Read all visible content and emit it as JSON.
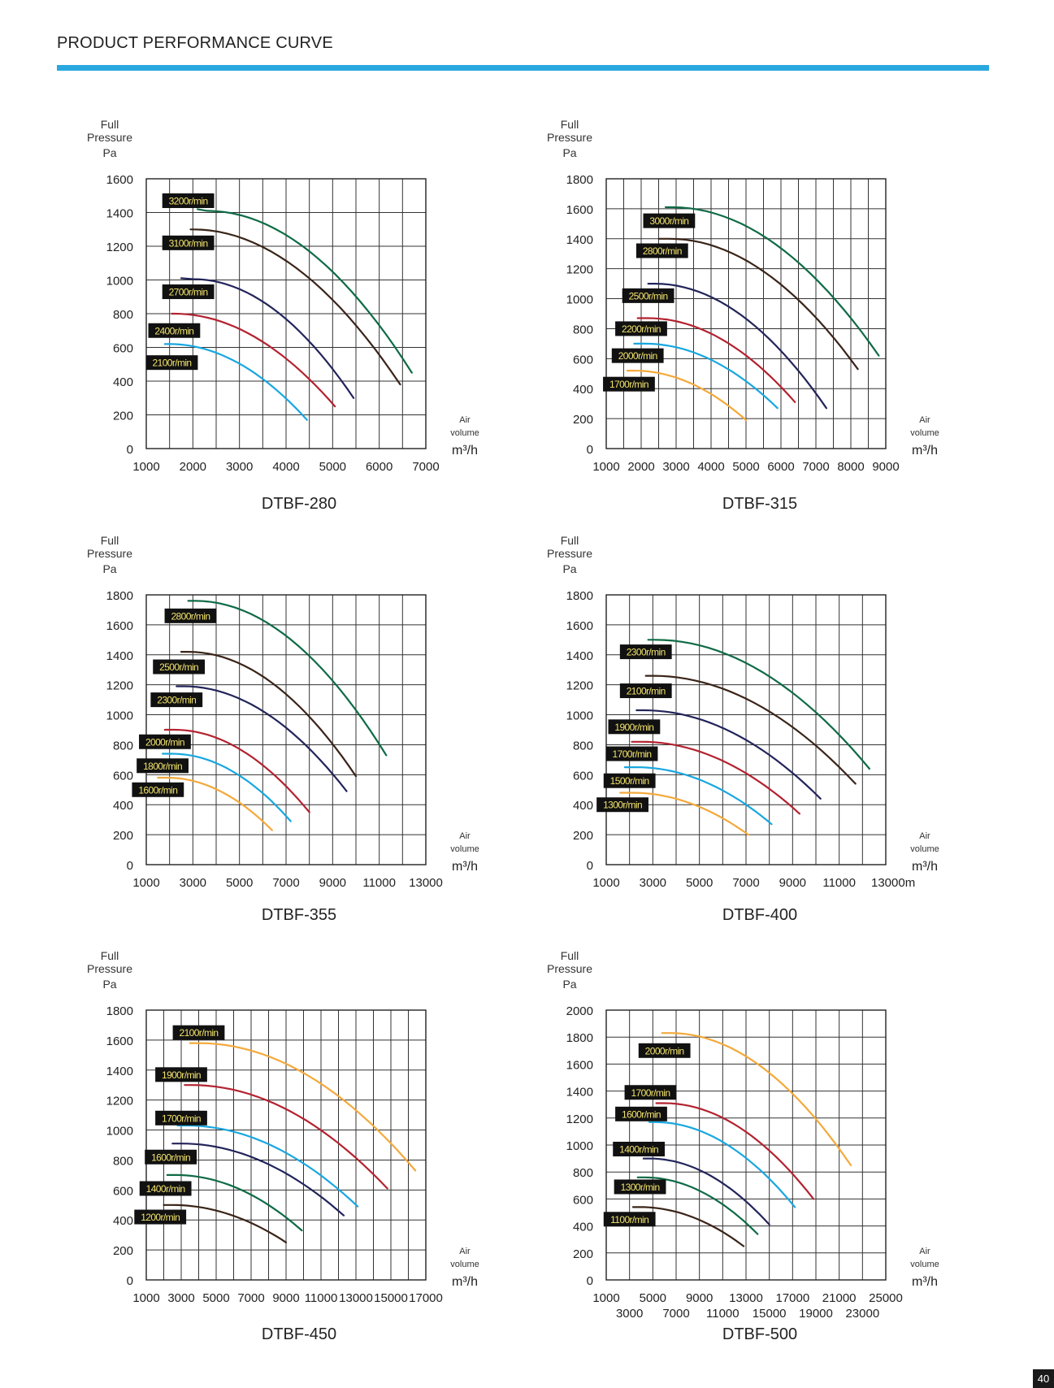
{
  "page": {
    "title": "PRODUCT PERFORMANCE CURVE",
    "page_number": "40",
    "accent_color": "#29a8e0"
  },
  "chart_data": [
    {
      "type": "line",
      "model": "DTBF-280",
      "ylabel": [
        "Full",
        "Pressure",
        "Pa"
      ],
      "xlabel": [
        "Air",
        "volume",
        "m³/h"
      ],
      "xlim": [
        1000,
        7000
      ],
      "x_ticks": [
        1000,
        2000,
        3000,
        4000,
        5000,
        6000,
        7000
      ],
      "x_tick_rows": 1,
      "x_vlines": 12,
      "ylim": [
        0,
        1600
      ],
      "y_ticks": [
        0,
        200,
        400,
        600,
        800,
        1000,
        1200,
        1400,
        1600
      ],
      "series": [
        {
          "name": "3200r/min",
          "color": "#0e6b45",
          "label_at": [
            1900,
            1470
          ],
          "start": [
            2100,
            1420
          ],
          "peak": [
            2300,
            1410
          ],
          "end": [
            6700,
            450
          ]
        },
        {
          "name": "3100r/min",
          "color": "#3a2418",
          "label_at": [
            1900,
            1220
          ],
          "start": [
            1950,
            1300
          ],
          "peak": [
            2000,
            1300
          ],
          "end": [
            6450,
            380
          ]
        },
        {
          "name": "2700r/min",
          "color": "#22245a",
          "label_at": [
            1900,
            930
          ],
          "start": [
            1750,
            1010
          ],
          "peak": [
            2000,
            1005
          ],
          "end": [
            5450,
            300
          ]
        },
        {
          "name": "2400r/min",
          "color": "#b3222f",
          "label_at": [
            1600,
            700
          ],
          "start": [
            1550,
            800
          ],
          "peak": [
            1600,
            800
          ],
          "end": [
            5050,
            250
          ]
        },
        {
          "name": "2100r/min",
          "color": "#18a7e0",
          "label_at": [
            1550,
            510
          ],
          "start": [
            1400,
            620
          ],
          "peak": [
            1500,
            620
          ],
          "end": [
            4450,
            170
          ]
        }
      ]
    },
    {
      "type": "line",
      "model": "DTBF-315",
      "ylabel": [
        "Full",
        "Pressure",
        "Pa"
      ],
      "xlabel": [
        "Air",
        "volume",
        "m³/h"
      ],
      "xlim": [
        1000,
        9000
      ],
      "x_ticks": [
        1000,
        2000,
        3000,
        4000,
        5000,
        6000,
        7000,
        8000,
        9000
      ],
      "x_tick_rows": 1,
      "x_vlines": 16,
      "ylim": [
        0,
        1800
      ],
      "y_ticks": [
        0,
        200,
        400,
        600,
        800,
        1000,
        1200,
        1400,
        1600,
        1800
      ],
      "series": [
        {
          "name": "3000r/min",
          "color": "#0e6b45",
          "label_at": [
            2800,
            1520
          ],
          "start": [
            2700,
            1610
          ],
          "peak": [
            2900,
            1610
          ],
          "end": [
            8800,
            620
          ]
        },
        {
          "name": "2800r/min",
          "color": "#3a2418",
          "label_at": [
            2600,
            1320
          ],
          "start": [
            2500,
            1400
          ],
          "peak": [
            2800,
            1400
          ],
          "end": [
            8200,
            530
          ]
        },
        {
          "name": "2500r/min",
          "color": "#22245a",
          "label_at": [
            2200,
            1020
          ],
          "start": [
            2200,
            1100
          ],
          "peak": [
            2400,
            1100
          ],
          "end": [
            7300,
            270
          ]
        },
        {
          "name": "2200r/min",
          "color": "#b3222f",
          "label_at": [
            2000,
            800
          ],
          "start": [
            1900,
            870
          ],
          "peak": [
            2200,
            870
          ],
          "end": [
            6400,
            310
          ]
        },
        {
          "name": "2000r/min",
          "color": "#18a7e0",
          "label_at": [
            1900,
            620
          ],
          "start": [
            1800,
            700
          ],
          "peak": [
            2100,
            700
          ],
          "end": [
            5900,
            270
          ]
        },
        {
          "name": "1700r/min",
          "color": "#f4a93a",
          "label_at": [
            1650,
            430
          ],
          "start": [
            1600,
            520
          ],
          "peak": [
            1800,
            520
          ],
          "end": [
            5000,
            190
          ]
        }
      ]
    },
    {
      "type": "line",
      "model": "DTBF-355",
      "ylabel": [
        "Full",
        "Pressure",
        "Pa"
      ],
      "xlabel": [
        "Air",
        "volume",
        "m³/h"
      ],
      "xlim": [
        1000,
        13000
      ],
      "x_ticks": [
        1000,
        3000,
        5000,
        7000,
        9000,
        11000,
        13000
      ],
      "x_tick_rows": 1,
      "x_vlines": 12,
      "ylim": [
        0,
        1800
      ],
      "y_ticks": [
        0,
        200,
        400,
        600,
        800,
        1000,
        1200,
        1400,
        1600,
        1800
      ],
      "series": [
        {
          "name": "2800r/min",
          "color": "#0e6b45",
          "label_at": [
            2900,
            1660
          ],
          "start": [
            2800,
            1760
          ],
          "peak": [
            3100,
            1760
          ],
          "end": [
            11300,
            730
          ]
        },
        {
          "name": "2500r/min",
          "color": "#3a2418",
          "label_at": [
            2400,
            1320
          ],
          "start": [
            2500,
            1420
          ],
          "peak": [
            2800,
            1420
          ],
          "end": [
            10000,
            590
          ]
        },
        {
          "name": "2300r/min",
          "color": "#22245a",
          "label_at": [
            2300,
            1100
          ],
          "start": [
            2300,
            1190
          ],
          "peak": [
            2600,
            1190
          ],
          "end": [
            9600,
            490
          ]
        },
        {
          "name": "2000r/min",
          "color": "#b3222f",
          "label_at": [
            1800,
            820
          ],
          "start": [
            1800,
            900
          ],
          "peak": [
            2200,
            900
          ],
          "end": [
            8000,
            350
          ]
        },
        {
          "name": "1800r/min",
          "color": "#18a7e0",
          "label_at": [
            1700,
            660
          ],
          "start": [
            1700,
            740
          ],
          "peak": [
            2100,
            740
          ],
          "end": [
            7200,
            290
          ]
        },
        {
          "name": "1600r/min",
          "color": "#f4a93a",
          "label_at": [
            1500,
            500
          ],
          "start": [
            1500,
            580
          ],
          "peak": [
            1900,
            580
          ],
          "end": [
            6400,
            230
          ]
        }
      ]
    },
    {
      "type": "line",
      "model": "DTBF-400",
      "ylabel": [
        "Full",
        "Pressure",
        "Pa"
      ],
      "xlabel": [
        "Air",
        "volume",
        "m³/h"
      ],
      "xlim": [
        1000,
        13000
      ],
      "x_ticks": [
        1000,
        3000,
        5000,
        7000,
        9000,
        11000,
        13000
      ],
      "x_tick_rows": 1,
      "x_vlines": 12,
      "x_tick_suffix": "m",
      "ylim": [
        0,
        1800
      ],
      "y_ticks": [
        0,
        200,
        400,
        600,
        800,
        1000,
        1200,
        1400,
        1600,
        1800
      ],
      "series": [
        {
          "name": "2300r/min",
          "color": "#0e6b45",
          "label_at": [
            2700,
            1420
          ],
          "start": [
            2800,
            1500
          ],
          "peak": [
            3100,
            1500
          ],
          "end": [
            12300,
            640
          ]
        },
        {
          "name": "2100r/min",
          "color": "#3a2418",
          "label_at": [
            2700,
            1160
          ],
          "start": [
            2700,
            1260
          ],
          "peak": [
            3000,
            1260
          ],
          "end": [
            11700,
            540
          ]
        },
        {
          "name": "1900r/min",
          "color": "#22245a",
          "label_at": [
            2200,
            920
          ],
          "start": [
            2300,
            1030
          ],
          "peak": [
            2600,
            1030
          ],
          "end": [
            10200,
            440
          ]
        },
        {
          "name": "1700r/min",
          "color": "#b3222f",
          "label_at": [
            2100,
            740
          ],
          "start": [
            2100,
            820
          ],
          "peak": [
            2500,
            820
          ],
          "end": [
            9300,
            340
          ]
        },
        {
          "name": "1500r/min",
          "color": "#18a7e0",
          "label_at": [
            2000,
            560
          ],
          "start": [
            1800,
            650
          ],
          "peak": [
            2300,
            650
          ],
          "end": [
            8100,
            270
          ]
        },
        {
          "name": "1300r/min",
          "color": "#f4a93a",
          "label_at": [
            1700,
            400
          ],
          "start": [
            1600,
            480
          ],
          "peak": [
            2100,
            480
          ],
          "end": [
            7100,
            200
          ]
        }
      ]
    },
    {
      "type": "line",
      "model": "DTBF-450",
      "ylabel": [
        "Full",
        "Pressure",
        "Pa"
      ],
      "xlabel": [
        "Air",
        "volume",
        "m³/h"
      ],
      "xlim": [
        1000,
        17000
      ],
      "x_ticks": [
        1000,
        3000,
        5000,
        7000,
        9000,
        11000,
        13000,
        15000,
        17000
      ],
      "x_tick_rows": 1,
      "x_vlines": 16,
      "ylim": [
        0,
        1800
      ],
      "y_ticks": [
        0,
        200,
        400,
        600,
        800,
        1000,
        1200,
        1400,
        1600,
        1800
      ],
      "series": [
        {
          "name": "2100r/min",
          "color": "#f4a93a",
          "label_at": [
            4000,
            1650
          ],
          "start": [
            3500,
            1580
          ],
          "peak": [
            4000,
            1580
          ],
          "end": [
            16400,
            730
          ]
        },
        {
          "name": "1900r/min",
          "color": "#b3222f",
          "label_at": [
            3000,
            1370
          ],
          "start": [
            3200,
            1300
          ],
          "peak": [
            3600,
            1300
          ],
          "end": [
            14800,
            610
          ]
        },
        {
          "name": "1700r/min",
          "color": "#18a7e0",
          "label_at": [
            3000,
            1080
          ],
          "start": [
            2800,
            1030
          ],
          "peak": [
            3300,
            1030
          ],
          "end": [
            13100,
            490
          ]
        },
        {
          "name": "1600r/min",
          "color": "#22245a",
          "label_at": [
            2400,
            820
          ],
          "start": [
            2500,
            910
          ],
          "peak": [
            3000,
            910
          ],
          "end": [
            12300,
            430
          ]
        },
        {
          "name": "1400r/min",
          "color": "#0e6b45",
          "label_at": [
            2100,
            610
          ],
          "start": [
            2200,
            700
          ],
          "peak": [
            2700,
            700
          ],
          "end": [
            9900,
            330
          ]
        },
        {
          "name": "1200r/min",
          "color": "#3a2418",
          "label_at": [
            1800,
            420
          ],
          "start": [
            2000,
            500
          ],
          "peak": [
            2500,
            500
          ],
          "end": [
            9000,
            250
          ]
        }
      ]
    },
    {
      "type": "line",
      "model": "DTBF-500",
      "ylabel": [
        "Full",
        "Pressure",
        "Pa"
      ],
      "xlabel": [
        "Air",
        "volume",
        "m³/h"
      ],
      "xlim": [
        1000,
        25000
      ],
      "x_ticks": [
        1000,
        3000,
        5000,
        7000,
        9000,
        11000,
        13000,
        15000,
        17000,
        19000,
        21000,
        23000,
        25000
      ],
      "x_tick_rows": 2,
      "x_vlines": 12,
      "ylim": [
        0,
        2000
      ],
      "y_ticks": [
        0,
        200,
        400,
        600,
        800,
        1000,
        1200,
        1400,
        1600,
        1800,
        2000
      ],
      "series": [
        {
          "name": "2000r/min",
          "color": "#f4a93a",
          "label_at": [
            6000,
            1700
          ],
          "start": [
            5800,
            1830
          ],
          "peak": [
            6500,
            1830
          ],
          "end": [
            22000,
            850
          ]
        },
        {
          "name": "1700r/min",
          "color": "#b3222f",
          "label_at": [
            4800,
            1390
          ],
          "start": [
            5300,
            1310
          ],
          "peak": [
            6000,
            1310
          ],
          "end": [
            18800,
            600
          ]
        },
        {
          "name": "1600r/min",
          "color": "#18a7e0",
          "label_at": [
            4000,
            1230
          ],
          "start": [
            4700,
            1170
          ],
          "peak": [
            5200,
            1170
          ],
          "end": [
            17200,
            540
          ]
        },
        {
          "name": "1400r/min",
          "color": "#22245a",
          "label_at": [
            3800,
            970
          ],
          "start": [
            4200,
            900
          ],
          "peak": [
            4700,
            900
          ],
          "end": [
            15000,
            410
          ]
        },
        {
          "name": "1300r/min",
          "color": "#0e6b45",
          "label_at": [
            3900,
            690
          ],
          "start": [
            3700,
            760
          ],
          "peak": [
            4300,
            760
          ],
          "end": [
            14000,
            340
          ]
        },
        {
          "name": "1100r/min",
          "color": "#3a2418",
          "label_at": [
            3000,
            450
          ],
          "start": [
            3300,
            540
          ],
          "peak": [
            3900,
            540
          ],
          "end": [
            12800,
            250
          ]
        }
      ]
    }
  ]
}
